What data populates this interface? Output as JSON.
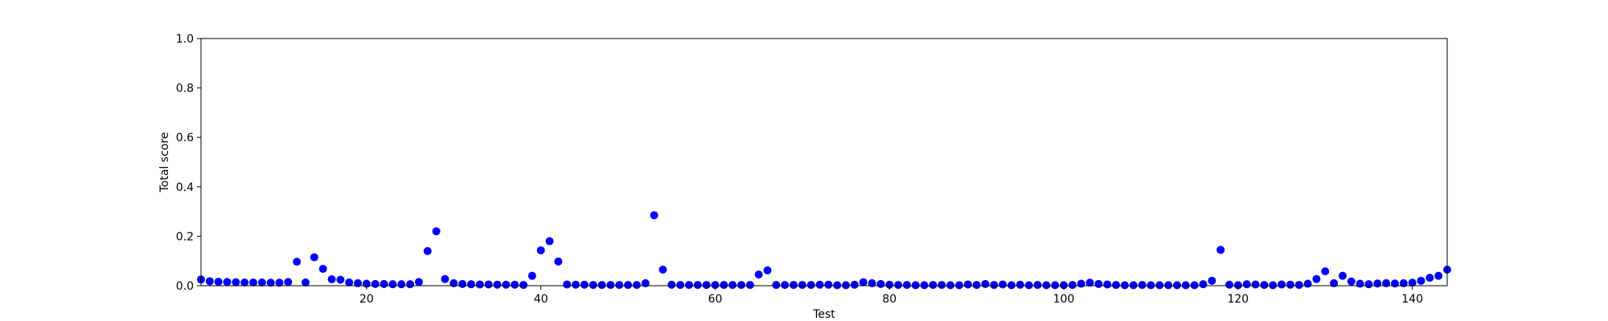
{
  "chart_data": {
    "type": "scatter",
    "title": "",
    "xlabel": "Test",
    "ylabel": "Total score",
    "xlim": [
      1,
      144
    ],
    "ylim": [
      0,
      1
    ],
    "x_ticks": [
      20,
      40,
      60,
      80,
      100,
      120,
      140
    ],
    "y_ticks": [
      0.0,
      0.2,
      0.4,
      0.6,
      0.8,
      1.0
    ],
    "x_tick_labels": [
      "20",
      "40",
      "60",
      "80",
      "100",
      "120",
      "140"
    ],
    "y_tick_labels": [
      "0.0",
      "0.2",
      "0.4",
      "0.6",
      "0.8",
      "1.0"
    ],
    "grid": false,
    "marker_color": "#0000ff",
    "series": [
      {
        "x": [
          1,
          2,
          3,
          4,
          5,
          6,
          7,
          8,
          9,
          10,
          11,
          12,
          13,
          14,
          15,
          16,
          17,
          18,
          19,
          20,
          21,
          22,
          23,
          24,
          25,
          26,
          27,
          28,
          29,
          30,
          31,
          32,
          33,
          34,
          35,
          36,
          37,
          38,
          39,
          40,
          41,
          42,
          43,
          44,
          45,
          46,
          47,
          48,
          49,
          50,
          51,
          52,
          53,
          54,
          55,
          56,
          57,
          58,
          59,
          60,
          61,
          62,
          63,
          64,
          65,
          66,
          67,
          68,
          69,
          70,
          71,
          72,
          73,
          74,
          75,
          76,
          77,
          78,
          79,
          80,
          81,
          82,
          83,
          84,
          85,
          86,
          87,
          88,
          89,
          90,
          91,
          92,
          93,
          94,
          95,
          96,
          97,
          98,
          99,
          100,
          101,
          102,
          103,
          104,
          105,
          106,
          107,
          108,
          109,
          110,
          111,
          112,
          113,
          114,
          115,
          116,
          117,
          118,
          119,
          120,
          121,
          122,
          123,
          124,
          125,
          126,
          127,
          128,
          129,
          130,
          131,
          132,
          133,
          134,
          135,
          136,
          137,
          138,
          139,
          140,
          141,
          142,
          143,
          144
        ],
        "y": [
          0.025,
          0.018,
          0.016,
          0.015,
          0.014,
          0.013,
          0.013,
          0.013,
          0.012,
          0.012,
          0.015,
          0.097,
          0.013,
          0.115,
          0.068,
          0.026,
          0.024,
          0.013,
          0.01,
          0.008,
          0.007,
          0.007,
          0.006,
          0.006,
          0.006,
          0.015,
          0.14,
          0.22,
          0.027,
          0.01,
          0.007,
          0.006,
          0.005,
          0.005,
          0.004,
          0.004,
          0.004,
          0.003,
          0.04,
          0.143,
          0.18,
          0.098,
          0.005,
          0.004,
          0.004,
          0.003,
          0.003,
          0.003,
          0.003,
          0.003,
          0.003,
          0.01,
          0.285,
          0.065,
          0.004,
          0.003,
          0.003,
          0.003,
          0.003,
          0.003,
          0.003,
          0.003,
          0.003,
          0.003,
          0.045,
          0.062,
          0.003,
          0.003,
          0.003,
          0.003,
          0.003,
          0.004,
          0.004,
          0.002,
          0.002,
          0.004,
          0.014,
          0.01,
          0.007,
          0.004,
          0.003,
          0.003,
          0.002,
          0.002,
          0.003,
          0.003,
          0.002,
          0.002,
          0.005,
          0.003,
          0.007,
          0.003,
          0.005,
          0.002,
          0.004,
          0.002,
          0.003,
          0.002,
          0.002,
          0.002,
          0.003,
          0.008,
          0.012,
          0.007,
          0.005,
          0.003,
          0.002,
          0.002,
          0.003,
          0.002,
          0.002,
          0.002,
          0.002,
          0.002,
          0.002,
          0.006,
          0.02,
          0.145,
          0.004,
          0.002,
          0.006,
          0.005,
          0.003,
          0.002,
          0.005,
          0.004,
          0.003,
          0.008,
          0.027,
          0.058,
          0.01,
          0.04,
          0.017,
          0.008,
          0.006,
          0.009,
          0.01,
          0.009,
          0.01,
          0.012,
          0.02,
          0.032,
          0.04,
          0.065
        ]
      }
    ]
  }
}
